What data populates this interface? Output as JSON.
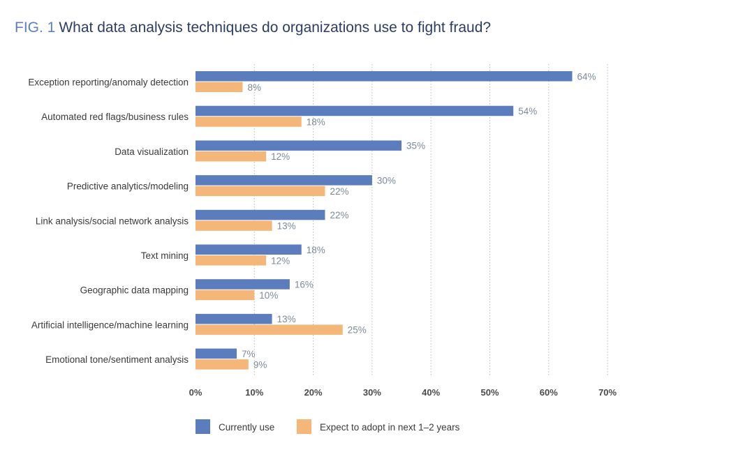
{
  "figure": {
    "label": "FIG. 1",
    "title": "What data analysis techniques do organizations use to fight fraud?"
  },
  "colors": {
    "current": "#5b7cbd",
    "expected": "#f5b679",
    "title_label": "#5a7fc2",
    "title_text": "#2c3d63"
  },
  "chart_data": {
    "type": "bar",
    "orientation": "horizontal",
    "title": "What data analysis techniques do organizations use to fight fraud?",
    "xlabel": "",
    "ylabel": "",
    "xlim": [
      0,
      70
    ],
    "xticks": [
      0,
      10,
      20,
      30,
      40,
      50,
      60,
      70
    ],
    "xtick_labels": [
      "0%",
      "10%",
      "20%",
      "30%",
      "40%",
      "50%",
      "60%",
      "70%"
    ],
    "grid": "vertical dotted",
    "legend_position": "bottom-left",
    "categories": [
      "Exception reporting/anomaly detection",
      "Automated red flags/business rules",
      "Data visualization",
      "Predictive analytics/modeling",
      "Link analysis/social network analysis",
      "Text mining",
      "Geographic data mapping",
      "Artificial intelligence/machine learning",
      "Emotional tone/sentiment analysis"
    ],
    "series": [
      {
        "name": "Currently use",
        "values": [
          64,
          54,
          35,
          30,
          22,
          18,
          16,
          13,
          7
        ],
        "labels": [
          "64%",
          "54%",
          "35%",
          "30%",
          "22%",
          "18%",
          "16%",
          "13%",
          "7%"
        ]
      },
      {
        "name": "Expect to adopt in next 1–2 years",
        "values": [
          8,
          18,
          12,
          22,
          13,
          12,
          10,
          25,
          9
        ],
        "labels": [
          "8%",
          "18%",
          "12%",
          "22%",
          "13%",
          "12%",
          "10%",
          "25%",
          "9%"
        ]
      }
    ]
  }
}
